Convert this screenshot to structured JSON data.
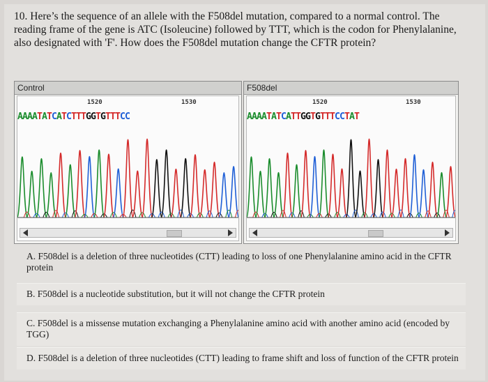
{
  "question": {
    "text": "10. Here’s the sequence of an allele with the F508del mutation, compared to a normal control. The reading frame of the gene is ATC (Isoleucine) followed by TTT, which is the codon for Phenylalanine, also designated with 'F'. How does the F508del mutation change the CFTR protein?"
  },
  "panels": {
    "control": {
      "tab_label": "Control",
      "tick_1": "1520",
      "tick_2": "1530",
      "sequence": "AAAATATCATCTTTGGTGTTTCC"
    },
    "mutant": {
      "tab_label": "F508del",
      "tick_1": "1520",
      "tick_2": "1530",
      "sequence": "AAAATATCATTGGTGTTTCCTAT"
    }
  },
  "colors": {
    "A": "#1a8c2c",
    "T": "#d42a2a",
    "C": "#1f5fd6",
    "G": "#111111"
  },
  "options": [
    {
      "label": "A. F508del is a deletion of three nucleotides (CTT) leading to loss of one Phenylalanine amino acid in the CFTR protein"
    },
    {
      "label": "B. F508del is a nucleotide substitution, but it will not change the CFTR protein"
    },
    {
      "label": "C. F508del is a missense mutation exchanging a Phenylalanine amino acid with another amino acid (encoded by TGG)"
    },
    {
      "label": "D. F508del is a deletion of three nucleotides (CTT) leading to frame shift and loss of function of the CFTR protein"
    }
  ]
}
